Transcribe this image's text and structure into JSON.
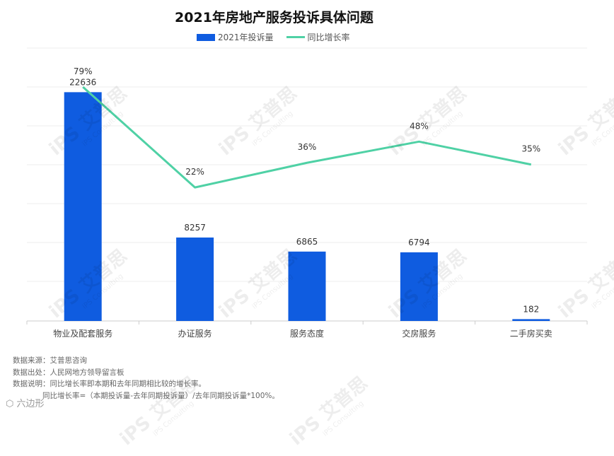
{
  "title": "2021年房地产服务投诉具体问题",
  "legend": {
    "bar_label": "2021年投诉量",
    "line_label": "同比增长率"
  },
  "colors": {
    "bar": "#0f5ce0",
    "line": "#4fd1a5",
    "grid": "#eeeeee",
    "axis": "#cccccc"
  },
  "chart_data": {
    "type": "bar",
    "categories": [
      "物业及配套服务",
      "办证服务",
      "服务态度",
      "交房服务",
      "二手房买卖"
    ],
    "series": [
      {
        "name": "2021年投诉量",
        "type": "bar",
        "values": [
          22636,
          8257,
          6865,
          6794,
          182
        ],
        "labels": [
          "22636",
          "8257",
          "6865",
          "6794",
          "182"
        ]
      },
      {
        "name": "同比增长率",
        "type": "line",
        "values": [
          79,
          22,
          36,
          48,
          35
        ],
        "labels": [
          "79%",
          "22%",
          "36%",
          "48%",
          "35%"
        ]
      }
    ],
    "grid": true,
    "legend_position": "top"
  },
  "notes": [
    "数据来源：艾普思咨询",
    "数据出处：人民网地方领导留言板",
    "数据说明：同比增长率即本期和去年同期相比较的增长率。",
    "同比增长率=（本期投诉量-去年同期投诉量）/去年同期投诉量*100%。"
  ],
  "watermark": {
    "text": "艾普思",
    "sub_text": "iPS Consulting"
  },
  "brand": "六边形"
}
